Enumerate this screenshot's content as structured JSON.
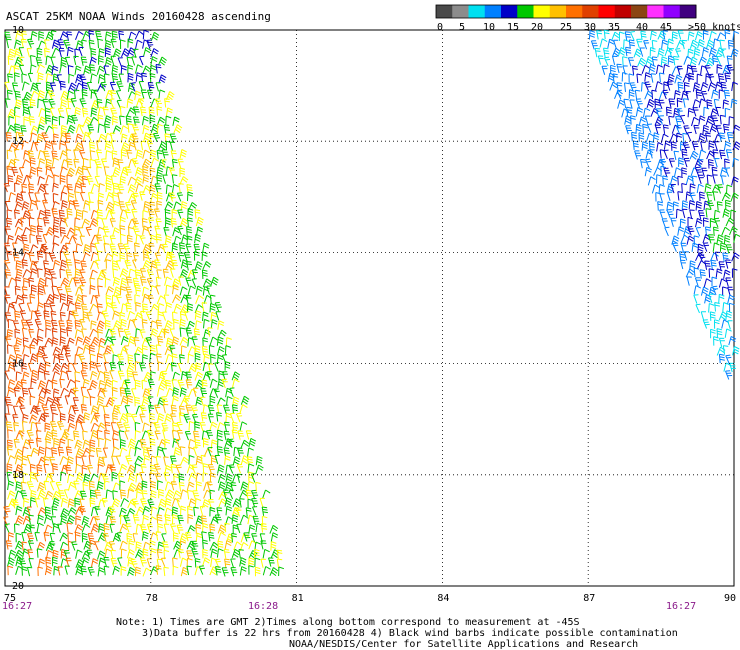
{
  "title": "ASCAT 25KM NOAA Winds 20160428 ascending",
  "legend": {
    "labels": [
      "0",
      "5",
      "10",
      "15",
      "20",
      "25",
      "30",
      "35",
      "40",
      "45",
      ">50 knots"
    ],
    "colors": [
      "#4a4a4a",
      "#8c8c8c",
      "#00e0f0",
      "#0080ff",
      "#0000c8",
      "#00c800",
      "#ffff00",
      "#ffc000",
      "#ff7000",
      "#e04000",
      "#ff0000",
      "#c00000",
      "#8b4513",
      "#ff30ff",
      "#9000ff",
      "#400080"
    ]
  },
  "axes": {
    "lon_labels": [
      "75",
      "78",
      "81",
      "84",
      "87",
      "90"
    ],
    "lat_labels": [
      "-10",
      "-12",
      "-14",
      "-16",
      "-18",
      "-20"
    ],
    "time_labels": [
      "16:27",
      "16:28",
      "16:27"
    ]
  },
  "notes": {
    "line1": "Note: 1) Times are GMT 2)Times along bottom correspond to measurement at -45S",
    "line2": "3)Data buffer is 22 hrs from 20160428 4) Black wind barbs indicate possible contamination",
    "line3": "NOAA/NESDIS/Center for Satellite Applications and Research"
  }
}
